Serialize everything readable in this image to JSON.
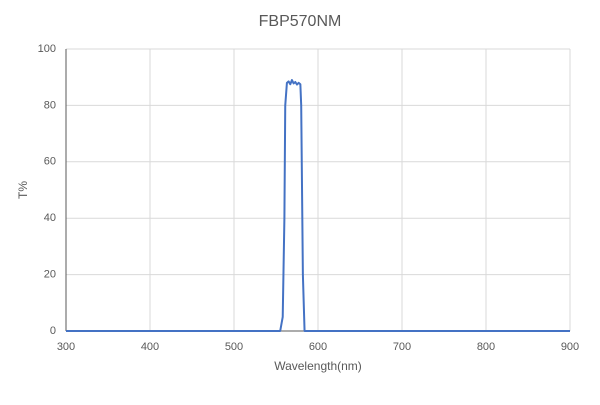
{
  "chart_data": {
    "type": "line",
    "title": "FBP570NM",
    "x_label": "Wavelength(nm)",
    "y_label": "T%",
    "x": [
      300,
      500,
      555,
      558,
      560,
      561,
      563,
      565,
      567,
      569,
      571,
      573,
      575,
      577,
      579,
      580,
      582,
      584,
      650,
      900
    ],
    "series": [
      {
        "name": "FBP570NM",
        "color": "#4472c4",
        "values": [
          0,
          0,
          0,
          5,
          40,
          80,
          88,
          88.5,
          87.5,
          89,
          87.8,
          88.3,
          87.4,
          88,
          87.5,
          80,
          20,
          0,
          0,
          0
        ]
      }
    ],
    "xlim": [
      300,
      900
    ],
    "xticks": [
      300,
      400,
      500,
      600,
      700,
      800,
      900
    ],
    "ylim": [
      0,
      100
    ],
    "yticks": [
      0,
      20,
      40,
      60,
      80,
      100
    ],
    "grid": true
  }
}
